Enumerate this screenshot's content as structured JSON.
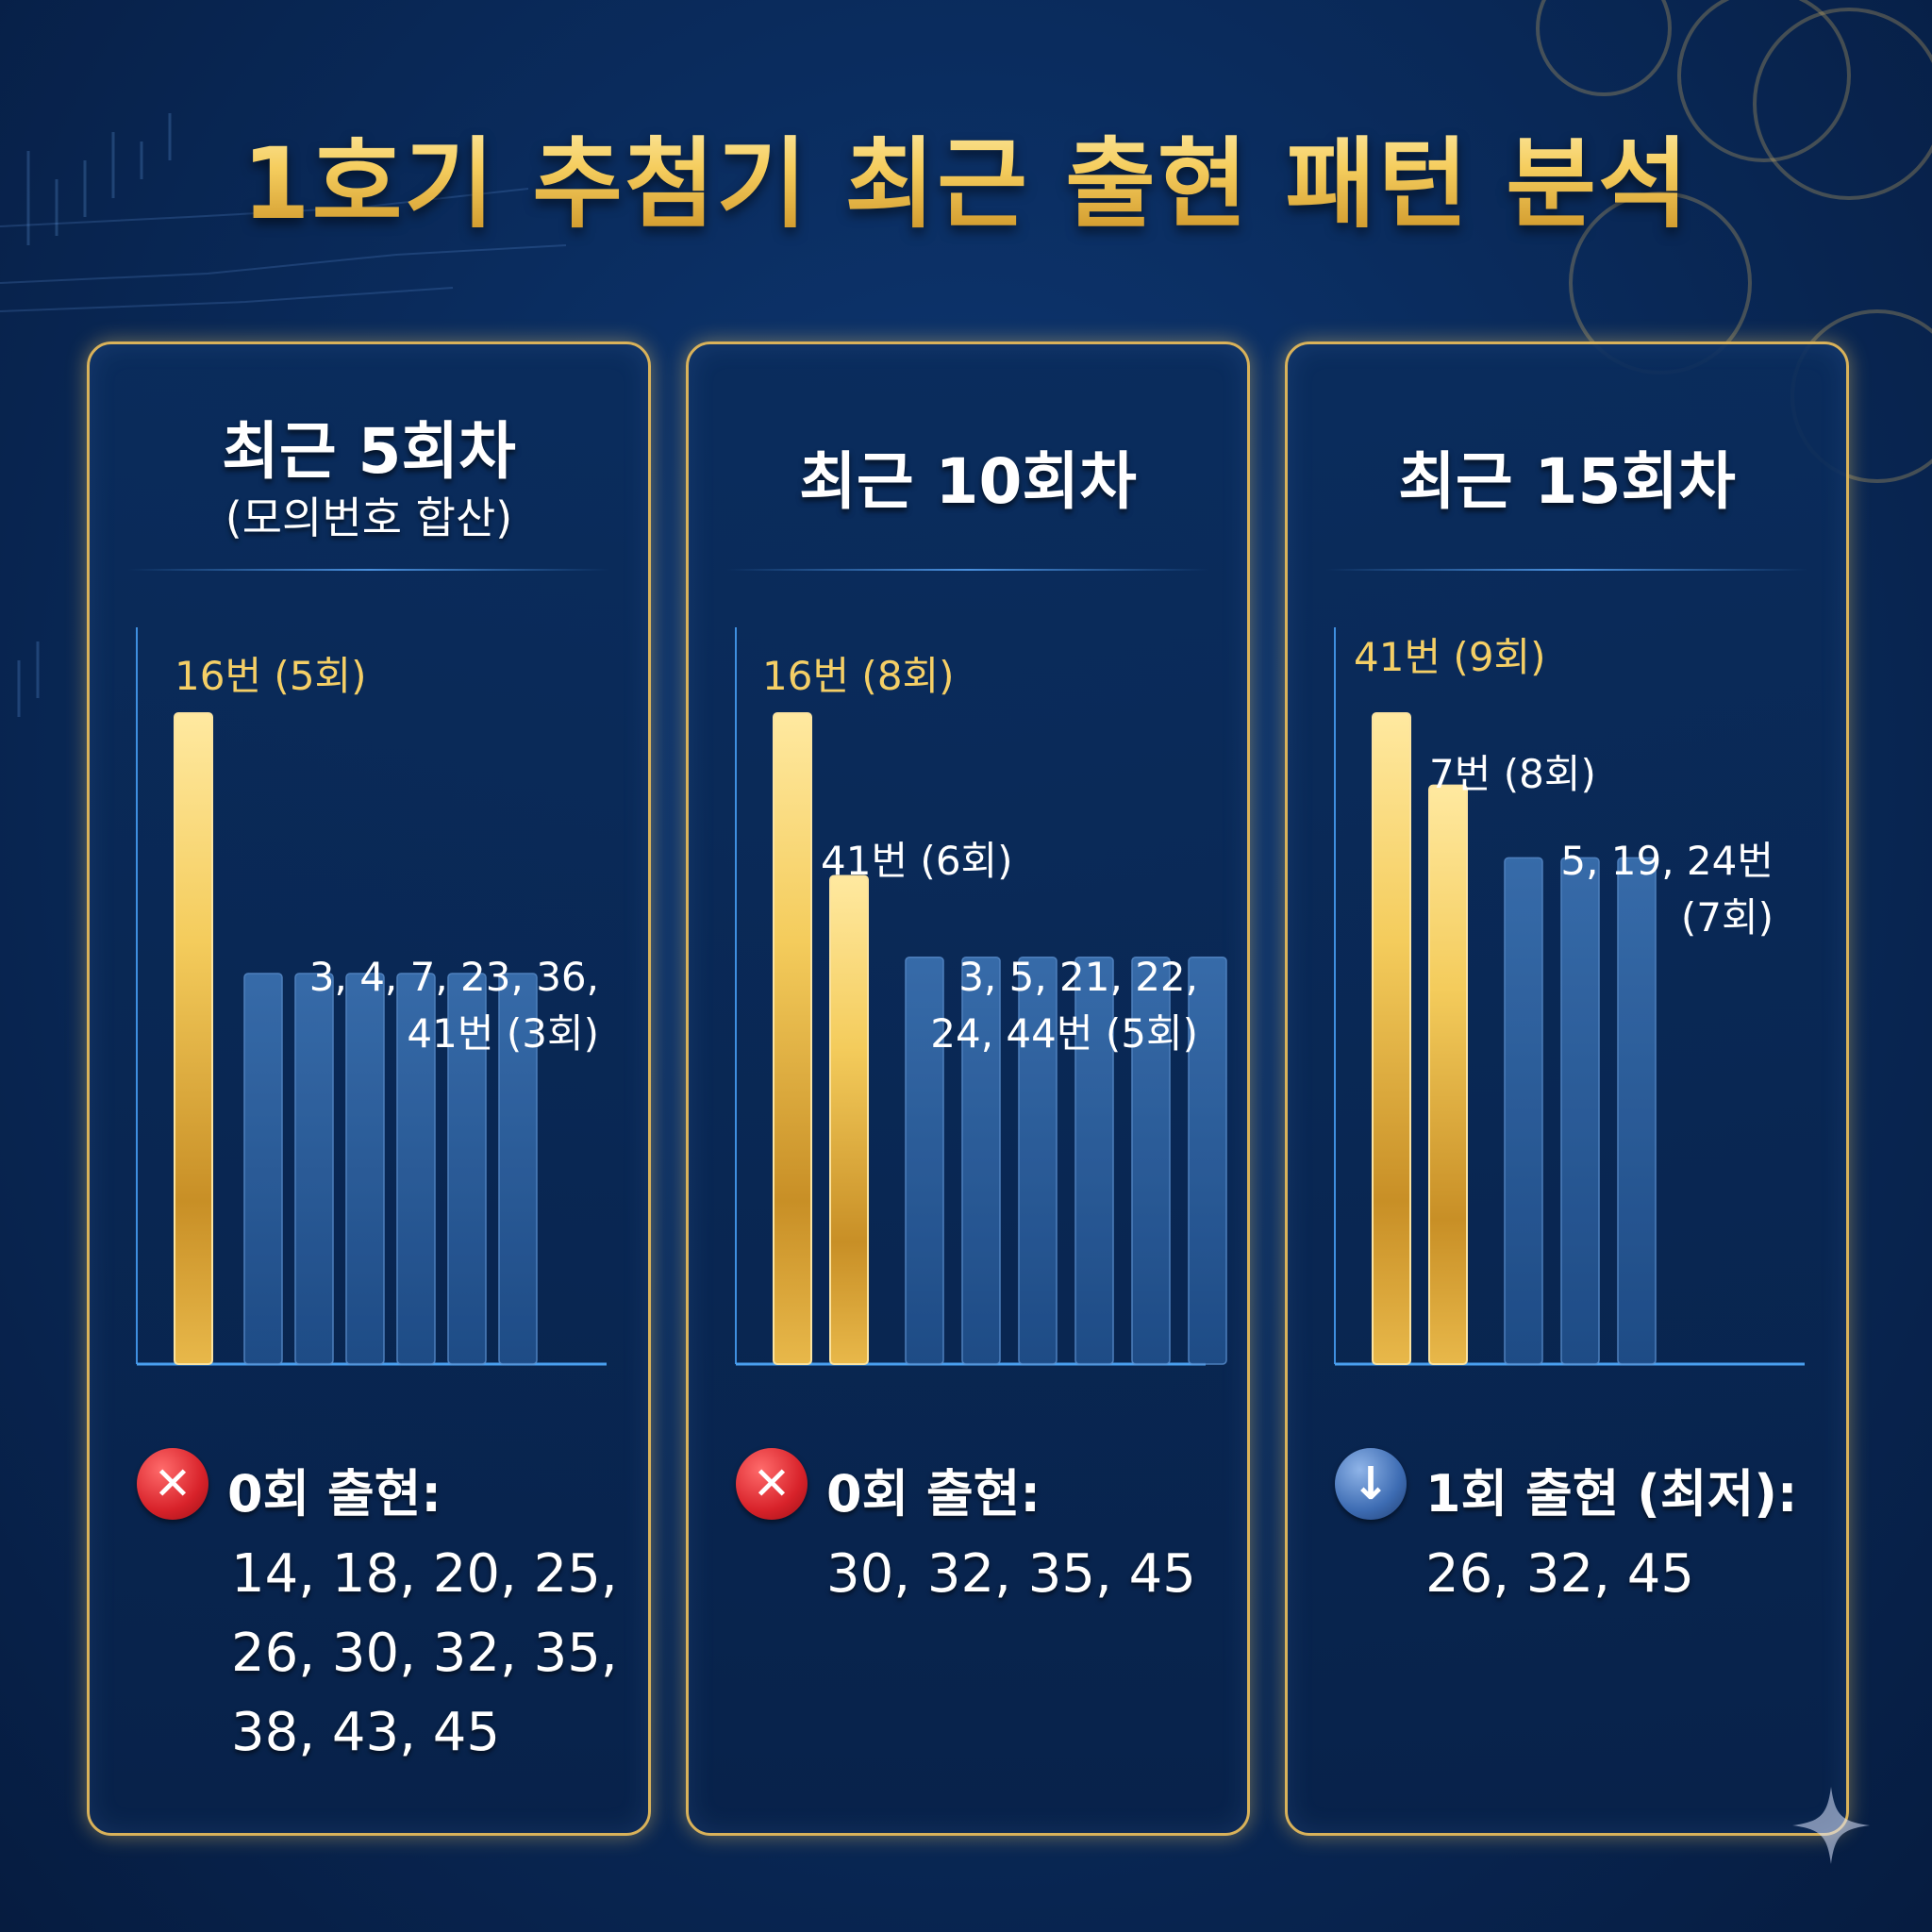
{
  "title": "1호기 추첨기 최근 출현 패턴 분석",
  "panels": [
    {
      "heading": "최근 5회차",
      "subheading": "(모의번호 합산)",
      "zero_icon": "x-icon",
      "zero_label": "0회 출현:",
      "zero_values": "14, 18, 20, 25, 26, 30, 32, 35, 38, 43, 45"
    },
    {
      "heading": "최근 10회차",
      "subheading": "",
      "zero_icon": "x-icon",
      "zero_label": "0회 출현:",
      "zero_values": "30, 32, 35, 45"
    },
    {
      "heading": "최근 15회차",
      "subheading": "",
      "zero_icon": "down-arrow-icon",
      "zero_label": "1회 출현 (최저):",
      "zero_values": "26, 32, 45"
    }
  ],
  "chart_data": [
    {
      "type": "bar",
      "title": "최근 5회차",
      "subtitle": "(모의번호 합산)",
      "ylim": [
        0,
        5
      ],
      "bars": [
        {
          "number": "16",
          "count": 5,
          "highlight": true
        },
        {
          "number": "3",
          "count": 3,
          "highlight": false
        },
        {
          "number": "4",
          "count": 3,
          "highlight": false
        },
        {
          "number": "7",
          "count": 3,
          "highlight": false
        },
        {
          "number": "23",
          "count": 3,
          "highlight": false
        },
        {
          "number": "36",
          "count": 3,
          "highlight": false
        },
        {
          "number": "41",
          "count": 3,
          "highlight": false
        }
      ],
      "annotations": [
        {
          "lines": [
            "16번 (5회)"
          ],
          "style": "gold"
        },
        {
          "lines": [
            "3, 4, 7, 23, 36,",
            "41번 (3회)"
          ],
          "style": "white"
        }
      ]
    },
    {
      "type": "bar",
      "title": "최근 10회차",
      "ylim": [
        0,
        8
      ],
      "bars": [
        {
          "number": "16",
          "count": 8,
          "highlight": true
        },
        {
          "number": "41",
          "count": 6,
          "highlight": true
        },
        {
          "number": "3",
          "count": 5,
          "highlight": false
        },
        {
          "number": "5",
          "count": 5,
          "highlight": false
        },
        {
          "number": "21",
          "count": 5,
          "highlight": false
        },
        {
          "number": "22",
          "count": 5,
          "highlight": false
        },
        {
          "number": "24",
          "count": 5,
          "highlight": false
        },
        {
          "number": "44",
          "count": 5,
          "highlight": false
        }
      ],
      "annotations": [
        {
          "lines": [
            "16번 (8회)"
          ],
          "style": "gold"
        },
        {
          "lines": [
            "41번 (6회)"
          ],
          "style": "white"
        },
        {
          "lines": [
            "3, 5, 21, 22,",
            "24, 44번 (5회)"
          ],
          "style": "white"
        }
      ]
    },
    {
      "type": "bar",
      "title": "최근 15회차",
      "ylim": [
        0,
        9
      ],
      "bars": [
        {
          "number": "41",
          "count": 9,
          "highlight": true
        },
        {
          "number": "7",
          "count": 8,
          "highlight": true
        },
        {
          "number": "5",
          "count": 7,
          "highlight": false
        },
        {
          "number": "19",
          "count": 7,
          "highlight": false
        },
        {
          "number": "24",
          "count": 7,
          "highlight": false
        }
      ],
      "annotations": [
        {
          "lines": [
            "41번 (9회)"
          ],
          "style": "gold"
        },
        {
          "lines": [
            "7번 (8회)"
          ],
          "style": "white"
        },
        {
          "lines": [
            "5, 19, 24번",
            "(7회)"
          ],
          "style": "white"
        }
      ]
    }
  ]
}
